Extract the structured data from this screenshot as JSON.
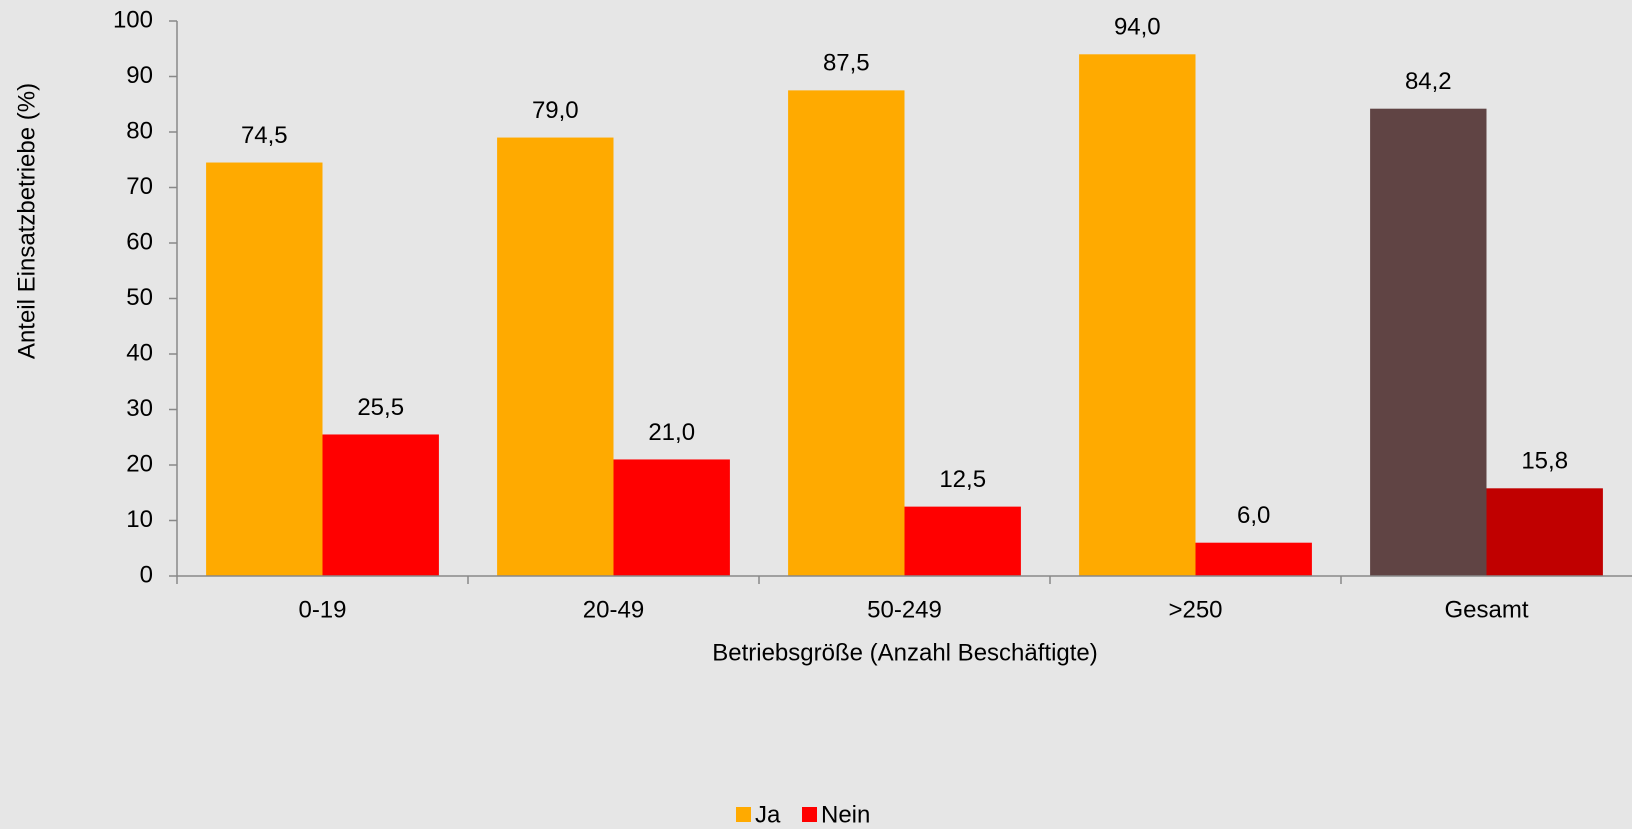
{
  "chart_data": {
    "type": "bar",
    "x_label": "Betriebsgröße (Anzahl Beschäftigte)",
    "y_label": "Anteil Einsatzbetriebe (%)",
    "categories": [
      "0-19",
      "20-49",
      "50-249",
      ">250",
      "Gesamt"
    ],
    "series": [
      {
        "name": "Ja",
        "color": "#ffaa00",
        "point_colors": [
          "#ffaa00",
          "#ffaa00",
          "#ffaa00",
          "#ffaa00",
          "#604444"
        ],
        "values": [
          74.5,
          79.0,
          87.5,
          94.0,
          84.2
        ],
        "value_labels": [
          "74,5",
          "79,0",
          "87,5",
          "94,0",
          "84,2"
        ]
      },
      {
        "name": "Nein",
        "color": "#ff0000",
        "point_colors": [
          "#ff0000",
          "#ff0000",
          "#ff0000",
          "#ff0000",
          "#c00000"
        ],
        "values": [
          25.5,
          21.0,
          12.5,
          6.0,
          15.8
        ],
        "value_labels": [
          "25,5",
          "21,0",
          "12,5",
          "6,0",
          "15,8"
        ]
      }
    ],
    "ylim": [
      0,
      100
    ],
    "yticks": [
      0,
      10,
      20,
      30,
      40,
      50,
      60,
      70,
      80,
      90,
      100
    ],
    "grid": false,
    "legend": "bottom"
  }
}
